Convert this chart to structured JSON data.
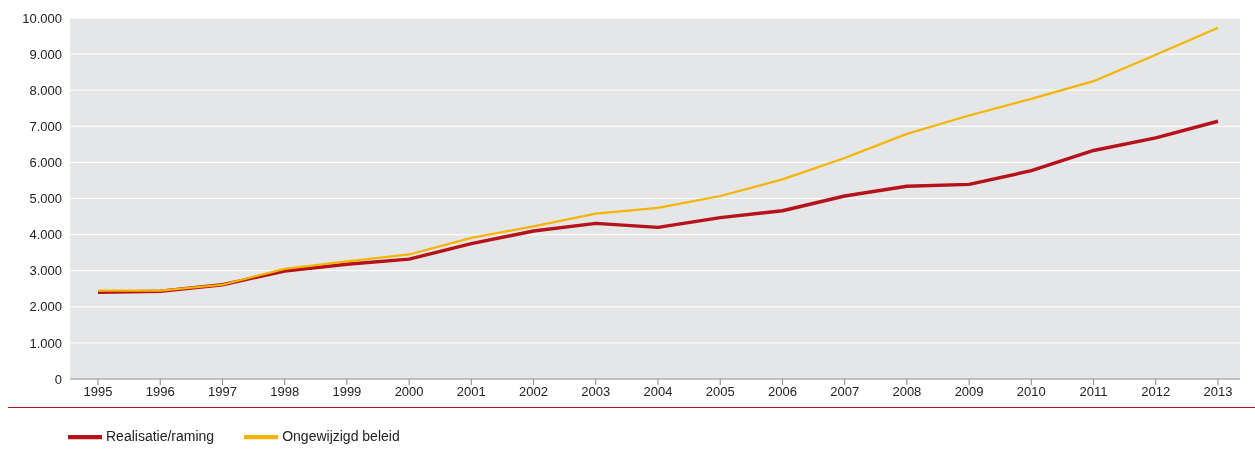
{
  "chart_data": {
    "type": "line",
    "categories": [
      "1995",
      "1996",
      "1997",
      "1998",
      "1999",
      "2000",
      "2001",
      "2002",
      "2003",
      "2004",
      "2005",
      "2006",
      "2007",
      "2008",
      "2009",
      "2010",
      "2011",
      "2012",
      "2013"
    ],
    "series": [
      {
        "name": "Realisatie/raming",
        "color": "#b5121b",
        "values": [
          2400,
          2430,
          2610,
          2990,
          3180,
          3320,
          3750,
          4100,
          4310,
          4200,
          4470,
          4660,
          5070,
          5340,
          5390,
          5770,
          6330,
          6680,
          7140
        ]
      },
      {
        "name": "Ongewijzigd beleid",
        "color": "#f5b400",
        "values": [
          2450,
          2450,
          2610,
          3050,
          3260,
          3450,
          3910,
          4230,
          4580,
          4740,
          5070,
          5530,
          6120,
          6790,
          7300,
          7760,
          8250,
          8980,
          9730
        ]
      }
    ],
    "ylim": [
      0,
      10000
    ],
    "yticks": [
      {
        "value": 0,
        "label": "0"
      },
      {
        "value": 1000,
        "label": "1.000"
      },
      {
        "value": 2000,
        "label": "2.000"
      },
      {
        "value": 3000,
        "label": "3.000"
      },
      {
        "value": 4000,
        "label": "4.000"
      },
      {
        "value": 5000,
        "label": "5.000"
      },
      {
        "value": 6000,
        "label": "6.000"
      },
      {
        "value": 7000,
        "label": "7.000"
      },
      {
        "value": 8000,
        "label": "8.000"
      },
      {
        "value": 9000,
        "label": "9.000"
      },
      {
        "value": 10000,
        "label": "10.000"
      }
    ],
    "grid": "y",
    "legend": "bottom left",
    "marker": "none",
    "line_style": "solid"
  }
}
